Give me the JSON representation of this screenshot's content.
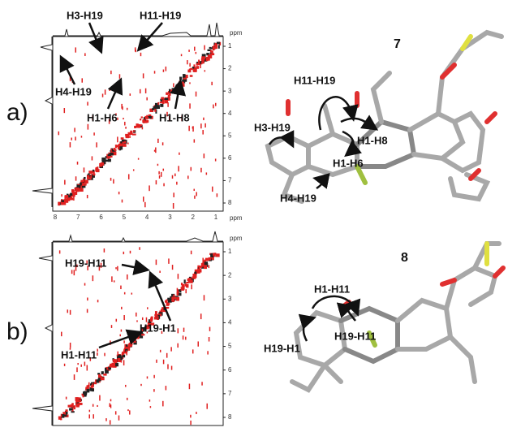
{
  "panels": [
    {
      "label": "a)",
      "compound": "7",
      "spectrum": {
        "x_ticks": [
          "8",
          "7",
          "6",
          "5",
          "4",
          "3",
          "2",
          "1"
        ],
        "x_unit": "ppm",
        "y_ticks": [
          "1",
          "2",
          "3",
          "4",
          "5",
          "6",
          "7",
          "8"
        ],
        "y_unit": "ppm",
        "annotations": [
          "H3-H19",
          "H11-H19",
          "H4-H19",
          "H1-H6",
          "H1-H8"
        ]
      },
      "model": {
        "annotations": [
          "H11-H19",
          "H3-H19",
          "H1-H8",
          "H1-H6",
          "H4-H19"
        ]
      }
    },
    {
      "label": "b)",
      "compound": "8",
      "spectrum": {
        "y_ticks": [
          "1",
          "2",
          "3",
          "4",
          "5",
          "6",
          "7",
          "8"
        ],
        "y_unit": "ppm",
        "annotations": [
          "H19-H11",
          "H19-H1",
          "H1-H11"
        ]
      },
      "model": {
        "annotations": [
          "H1-H11",
          "H19-H11",
          "H19-H1"
        ]
      }
    }
  ]
}
